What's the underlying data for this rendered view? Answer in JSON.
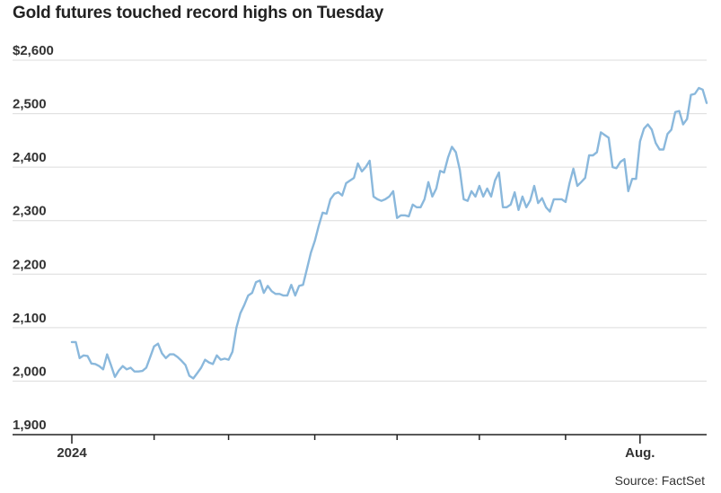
{
  "title": "Gold futures touched record highs on Tuesday",
  "source": "Source: FactSet",
  "colors": {
    "line": "#8ab8dc",
    "grid": "#dcdcdc",
    "axis": "#222222",
    "text": "#333333"
  },
  "chart_data": {
    "type": "line",
    "title": "Gold futures touched record highs on Tuesday",
    "xlabel": "",
    "ylabel": "",
    "ylim": [
      1900,
      2600
    ],
    "yticks": [
      1900,
      2000,
      2100,
      2200,
      2300,
      2400,
      2500,
      2600
    ],
    "ytick_labels": [
      "1,900",
      "2,000",
      "2,100",
      "2,200",
      "2,300",
      "2,400",
      "2,500",
      "$2,600"
    ],
    "xtick_labels": [
      {
        "label": "2024",
        "index": 0
      },
      {
        "label": "Aug.",
        "index": 145
      }
    ],
    "minor_xtick_indices": [
      21,
      40,
      62,
      83,
      104,
      126
    ],
    "grid": "horizontal",
    "legend": "none",
    "series": [
      {
        "values": [
          2073,
          2073,
          2043,
          2048,
          2047,
          2033,
          2032,
          2028,
          2022,
          2050,
          2030,
          2008,
          2020,
          2028,
          2022,
          2025,
          2018,
          2018,
          2019,
          2025,
          2045,
          2065,
          2070,
          2052,
          2043,
          2050,
          2050,
          2045,
          2038,
          2030,
          2010,
          2005,
          2015,
          2025,
          2040,
          2035,
          2032,
          2048,
          2040,
          2042,
          2040,
          2055,
          2100,
          2127,
          2142,
          2160,
          2165,
          2185,
          2188,
          2165,
          2178,
          2168,
          2163,
          2163,
          2160,
          2160,
          2180,
          2160,
          2178,
          2180,
          2210,
          2240,
          2262,
          2290,
          2315,
          2313,
          2340,
          2350,
          2353,
          2347,
          2370,
          2375,
          2380,
          2407,
          2392,
          2400,
          2412,
          2345,
          2340,
          2337,
          2340,
          2345,
          2355,
          2305,
          2310,
          2310,
          2308,
          2330,
          2325,
          2325,
          2340,
          2372,
          2345,
          2360,
          2393,
          2390,
          2418,
          2438,
          2428,
          2395,
          2340,
          2337,
          2355,
          2345,
          2365,
          2345,
          2360,
          2345,
          2375,
          2390,
          2325,
          2325,
          2330,
          2353,
          2320,
          2345,
          2325,
          2338,
          2365,
          2333,
          2342,
          2325,
          2317,
          2340,
          2340,
          2340,
          2335,
          2370,
          2397,
          2365,
          2372,
          2380,
          2422,
          2422,
          2428,
          2465,
          2460,
          2455,
          2400,
          2398,
          2410,
          2415,
          2355,
          2378,
          2378,
          2448,
          2472,
          2480,
          2470,
          2445,
          2433,
          2433,
          2462,
          2470,
          2503,
          2505,
          2480,
          2490,
          2535,
          2537,
          2548,
          2545,
          2520
        ]
      }
    ]
  }
}
